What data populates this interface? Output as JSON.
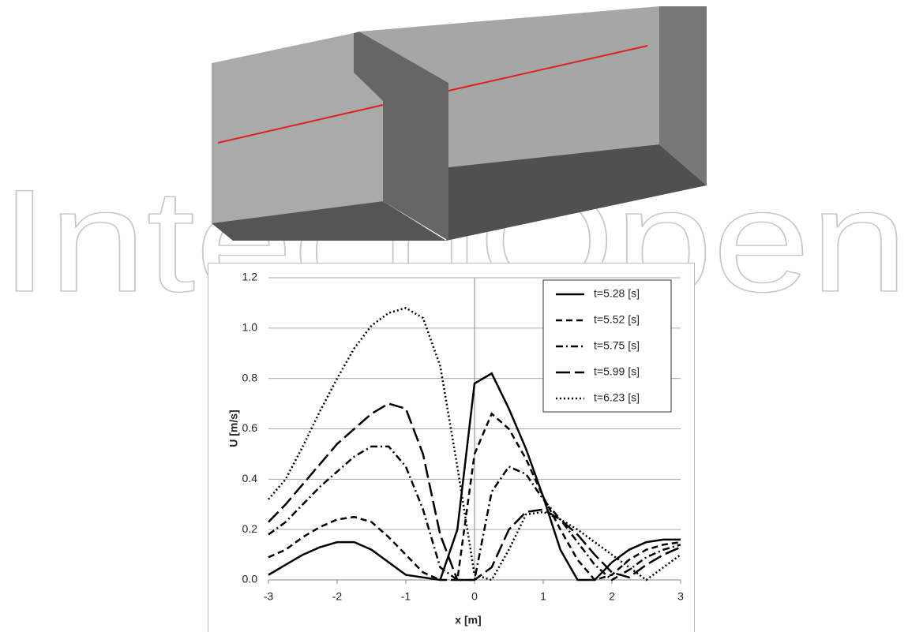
{
  "watermark": "IntechOpen",
  "chart_data": {
    "type": "line",
    "xlabel": "x [m]",
    "ylabel": "U [m/s]",
    "x": [
      -3,
      -2.75,
      -2.5,
      -2.25,
      -2,
      -1.75,
      -1.5,
      -1.25,
      -1,
      -0.75,
      -0.5,
      -0.25,
      0,
      0.25,
      0.5,
      0.75,
      1,
      1.25,
      1.5,
      1.75,
      2,
      2.25,
      2.5,
      2.75,
      3
    ],
    "series": [
      {
        "name": "t=5.28 [s]",
        "color": "#000000",
        "dash": "none",
        "values": [
          0.02,
          0.06,
          0.1,
          0.13,
          0.15,
          0.15,
          0.12,
          0.07,
          0.02,
          0.01,
          0,
          0.2,
          0.78,
          0.82,
          0.68,
          0.52,
          0.33,
          0.12,
          0,
          0,
          0.07,
          0.12,
          0.15,
          0.16,
          0.16
        ]
      },
      {
        "name": "t=5.52 [s]",
        "color": "#000000",
        "dash": "8,5",
        "values": [
          0.09,
          0.12,
          0.17,
          0.21,
          0.24,
          0.25,
          0.23,
          0.17,
          0.1,
          0.03,
          0,
          0,
          0.5,
          0.66,
          0.6,
          0.48,
          0.33,
          0.2,
          0.08,
          0,
          0.02,
          0.08,
          0.12,
          0.14,
          0.15
        ]
      },
      {
        "name": "t=5.75 [s]",
        "color": "#000000",
        "dash": "9,4,2,4",
        "values": [
          0.18,
          0.23,
          0.3,
          0.37,
          0.43,
          0.49,
          0.53,
          0.53,
          0.45,
          0.28,
          0.05,
          0,
          0,
          0.35,
          0.45,
          0.42,
          0.32,
          0.24,
          0.15,
          0.06,
          0,
          0.04,
          0.09,
          0.12,
          0.14
        ]
      },
      {
        "name": "t=5.99 [s]",
        "color": "#000000",
        "dash": "18,6",
        "values": [
          0.23,
          0.3,
          0.38,
          0.46,
          0.54,
          0.6,
          0.66,
          0.7,
          0.68,
          0.5,
          0.18,
          0,
          0,
          0.05,
          0.2,
          0.27,
          0.28,
          0.24,
          0.18,
          0.1,
          0.03,
          0.01,
          0.06,
          0.1,
          0.13
        ]
      },
      {
        "name": "t=6.23 [s]",
        "color": "#000000",
        "dash": "2,3",
        "values": [
          0.32,
          0.4,
          0.53,
          0.67,
          0.8,
          0.92,
          1.01,
          1.06,
          1.08,
          1.04,
          0.85,
          0.45,
          0.02,
          0,
          0.12,
          0.26,
          0.27,
          0.24,
          0.2,
          0.15,
          0.1,
          0.05,
          0,
          0.05,
          0.1
        ]
      }
    ],
    "xlim": [
      -3,
      3
    ],
    "xticks": [
      -3,
      -2,
      -1,
      0,
      1,
      2,
      3
    ],
    "ylim": [
      0,
      1.2
    ],
    "yticks": [
      {
        "value": 0,
        "label": "0.0"
      },
      {
        "value": 0.2,
        "label": "0.2"
      },
      {
        "value": 0.4,
        "label": "0.4"
      },
      {
        "value": 0.6,
        "label": "0.6"
      },
      {
        "value": 0.8,
        "label": "0.8"
      },
      {
        "value": 1.0,
        "label": "1.0"
      },
      {
        "value": 1.2,
        "label": "1.2"
      }
    ],
    "grid": true,
    "legend": "top-right"
  }
}
